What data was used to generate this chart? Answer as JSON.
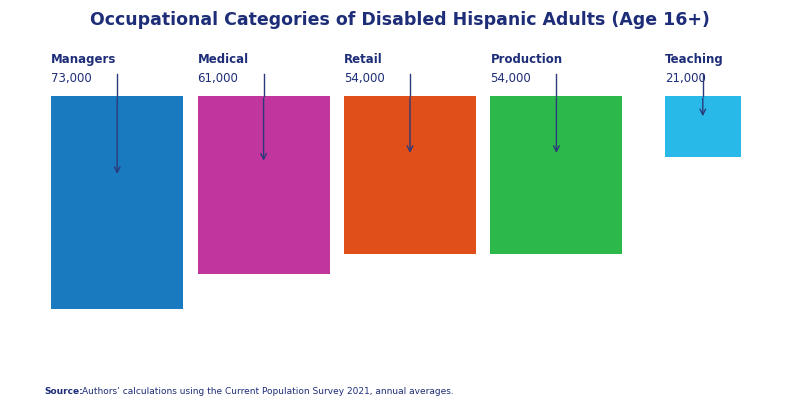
{
  "title": "Occupational Categories of Disabled Hispanic Adults (Age 16+)",
  "categories": [
    "Managers",
    "Medical",
    "Retail",
    "Production",
    "Teaching"
  ],
  "values": [
    73000,
    61000,
    54000,
    54000,
    21000
  ],
  "labels": [
    "73,000",
    "61,000",
    "54,000",
    "54,000",
    "21,000"
  ],
  "colors": [
    "#1a7abf",
    "#c0369e",
    "#e04e1a",
    "#2db84b",
    "#29b9e8"
  ],
  "arrow_color": "#2b3a7a",
  "title_color": "#1e2d78",
  "label_color": "#1e2d78",
  "source_bold": "Source:",
  "source_text": "Authors’ calculations using the Current Population Survey 2021, annual averages.",
  "background_color": "#ffffff"
}
